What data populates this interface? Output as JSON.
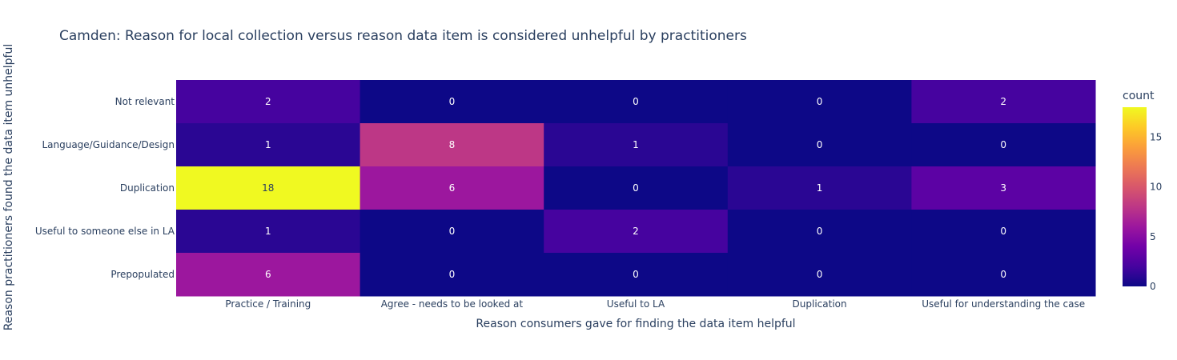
{
  "chart_data": {
    "type": "heatmap",
    "title": "Camden: Reason for local collection versus reason data item is considered unhelpful by practitioners",
    "xlabel": "Reason consumers gave for finding the data item helpful",
    "ylabel": "Reason practitioners found the data item unhelpful",
    "x_categories": [
      "Practice / Training",
      "Agree - needs to be looked at",
      "Useful to LA",
      "Duplication",
      "Useful for understanding the case"
    ],
    "y_categories": [
      "Not relevant",
      "Language/Guidance/Design",
      "Duplication",
      "Useful to someone else in LA",
      "Prepopulated"
    ],
    "z": [
      [
        2,
        0,
        0,
        0,
        2
      ],
      [
        1,
        8,
        1,
        0,
        0
      ],
      [
        18,
        6,
        0,
        1,
        3
      ],
      [
        1,
        0,
        2,
        0,
        0
      ],
      [
        6,
        0,
        0,
        0,
        0
      ]
    ],
    "colorbar": {
      "title": "count",
      "ticks": [
        0,
        5,
        10,
        15
      ],
      "range": [
        0,
        18
      ],
      "colorscale": [
        "#0d0887",
        "#46039f",
        "#7201a8",
        "#9c179e",
        "#bd3786",
        "#d8576b",
        "#ed7953",
        "#fb9f3a",
        "#fdca26",
        "#f0f921"
      ]
    }
  }
}
